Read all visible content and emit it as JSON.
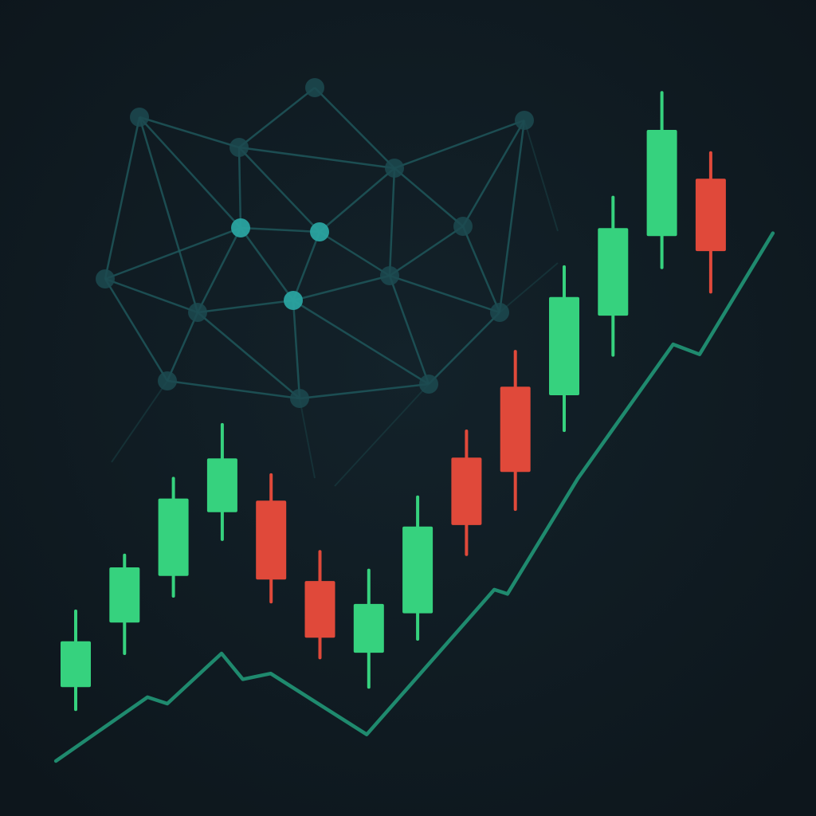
{
  "chart_data": [
    {
      "type": "candlestick",
      "categories": [
        null,
        null,
        null,
        null,
        null,
        null,
        null,
        null,
        null,
        null,
        null,
        null,
        null,
        null
      ],
      "open": [
        15.3,
        24.3,
        30.8,
        39.7,
        41.3,
        30.1,
        20.1,
        25.6,
        47.3,
        57.2,
        56.0,
        67.1,
        78.2,
        86.2
      ],
      "high": [
        25.9,
        33.7,
        44.4,
        51.9,
        44.9,
        34.2,
        31.6,
        41.8,
        51.0,
        62.1,
        73.9,
        83.6,
        98.2,
        89.8
      ],
      "low": [
        12.2,
        20.0,
        28.0,
        35.9,
        27.2,
        19.4,
        15.3,
        22.0,
        33.8,
        40.1,
        51.1,
        61.6,
        73.8,
        70.4
      ],
      "close": [
        21.7,
        32.0,
        41.6,
        47.2,
        30.3,
        22.2,
        26.9,
        37.7,
        37.9,
        45.3,
        69.7,
        79.3,
        93.0,
        76.1
      ],
      "up_color": "#36d27e",
      "down_color": "#e0493a",
      "ylim": [
        0,
        100
      ]
    },
    {
      "type": "line",
      "x": [
        1.1,
        13.6,
        16.3,
        23.7,
        26.6,
        30.4,
        43.5,
        60.9,
        62.7,
        72.3,
        85.3,
        88.9,
        98.9
      ],
      "values": [
        5.0,
        13.9,
        13.0,
        20.0,
        16.4,
        17.2,
        8.7,
        28.9,
        28.3,
        44.4,
        63.1,
        61.7,
        78.6
      ],
      "color": "#1f8a6e",
      "xlim": [
        0,
        100
      ],
      "ylim": [
        0,
        100
      ]
    }
  ]
}
